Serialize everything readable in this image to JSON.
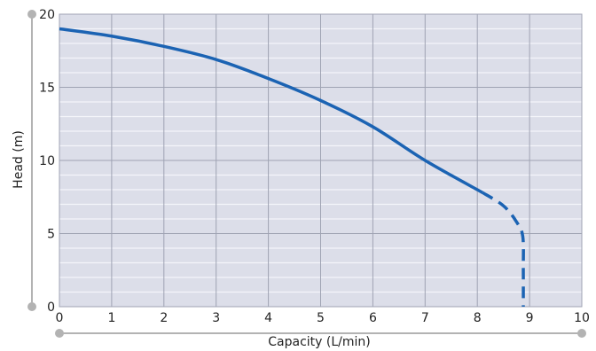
{
  "chart_data": {
    "type": "line",
    "xlabel": "Capacity (L/min)",
    "ylabel": "Head (m)",
    "xlim": [
      0,
      10
    ],
    "ylim": [
      0,
      20
    ],
    "x_ticks": [
      "0",
      "1",
      "2",
      "3",
      "4",
      "5",
      "6",
      "7",
      "8",
      "9",
      "10"
    ],
    "y_ticks": [
      "0",
      "5",
      "10",
      "15",
      "20"
    ],
    "grid": true,
    "minor_grid_y_step": 1,
    "series": [
      {
        "style": "solid",
        "x": [
          0,
          1,
          2,
          3,
          4,
          5,
          6,
          7,
          8.1
        ],
        "y": [
          19.0,
          18.5,
          17.8,
          16.9,
          15.6,
          14.1,
          12.3,
          10.0,
          7.8
        ]
      },
      {
        "style": "dashed",
        "x": [
          8.1,
          8.5,
          8.75,
          8.87,
          8.88,
          8.88
        ],
        "y": [
          7.8,
          6.9,
          5.8,
          4.8,
          2.5,
          0
        ]
      }
    ],
    "colors": {
      "line": "#1b63b3",
      "plot_bg": "#dcdee9",
      "grid_major": "#9fa3b3",
      "grid_minor": "#f4f5fa",
      "axis": "#9a9a9a",
      "marker": "#b3b3b3"
    }
  }
}
